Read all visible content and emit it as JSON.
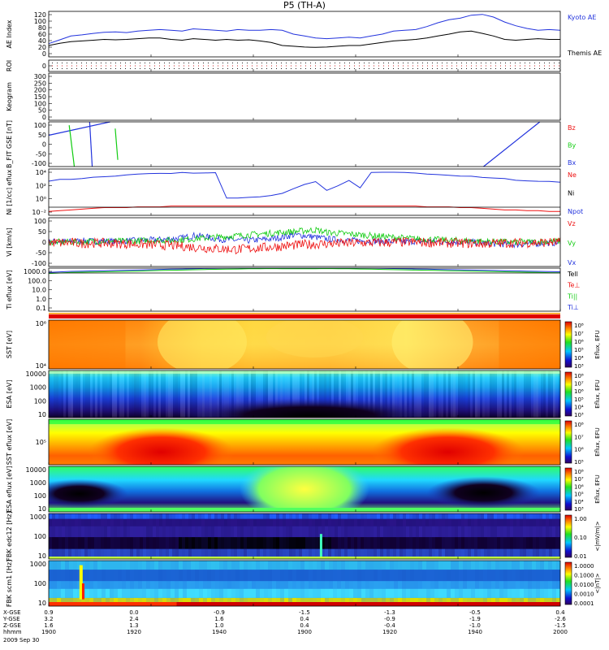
{
  "title": "P5 (TH-A)",
  "date": "2009 Sep 30",
  "colors": {
    "blue": "#2233dd",
    "red": "#ee1111",
    "green": "#11cc11",
    "black": "#000000"
  },
  "chart_data": [
    {
      "id": "ae",
      "type": "line",
      "ylabel": "AE Index",
      "ylim": [
        0,
        120
      ],
      "ticks": [
        "120",
        "100",
        "80",
        "60",
        "40",
        "20",
        "0"
      ],
      "legend": [
        {
          "text": "Kyoto AE",
          "color": "blue"
        },
        {
          "text": "Themis AE",
          "color": "black"
        }
      ],
      "series": [
        {
          "name": "Kyoto AE",
          "color": "blue",
          "values": [
            35,
            45,
            55,
            58,
            62,
            65,
            66,
            64,
            68,
            70,
            72,
            70,
            68,
            74,
            72,
            70,
            68,
            72,
            70,
            70,
            72,
            70,
            60,
            55,
            50,
            48,
            50,
            52,
            50,
            55,
            60,
            68,
            70,
            72,
            80,
            90,
            98,
            102,
            110,
            112,
            105,
            92,
            82,
            75,
            70,
            72,
            70
          ]
        },
        {
          "name": "Themis AE",
          "color": "black",
          "values": [
            30,
            36,
            40,
            42,
            44,
            46,
            45,
            46,
            48,
            50,
            50,
            46,
            44,
            48,
            46,
            44,
            46,
            44,
            45,
            42,
            38,
            30,
            28,
            26,
            25,
            26,
            28,
            30,
            30,
            34,
            38,
            42,
            44,
            46,
            50,
            55,
            60,
            66,
            68,
            62,
            55,
            46,
            44,
            46,
            48,
            46,
            46
          ]
        }
      ]
    },
    {
      "id": "roi",
      "type": "markers",
      "ylabel": "ROI",
      "ticks": [
        "0"
      ]
    },
    {
      "id": "keogram",
      "type": "blank",
      "ylabel": "Keogram",
      "ylim": [
        0,
        300
      ],
      "ticks": [
        "300",
        "250",
        "200",
        "150",
        "100",
        "50",
        "0"
      ]
    },
    {
      "id": "bfit",
      "type": "line",
      "ylabel": "B_FIT GSE [nT]",
      "ylim": [
        -100,
        100
      ],
      "ticks": [
        "100",
        "50",
        "0",
        "-50",
        "-100"
      ],
      "legend": [
        {
          "text": "Bz",
          "color": "red"
        },
        {
          "text": "By",
          "color": "green"
        },
        {
          "text": "Bx",
          "color": "blue"
        }
      ],
      "segments": [
        {
          "color": "blue",
          "x": [
            1900,
            1912
          ],
          "y": [
            40,
            100
          ]
        },
        {
          "color": "green",
          "x": [
            1904,
            1905
          ],
          "y": [
            85,
            -100
          ]
        },
        {
          "color": "blue",
          "x": [
            1908,
            1908.5
          ],
          "y": [
            100,
            -100
          ]
        },
        {
          "color": "green",
          "x": [
            1913,
            1913.5
          ],
          "y": [
            70,
            -70
          ]
        },
        {
          "color": "blue",
          "x": [
            1985,
            1996
          ],
          "y": [
            -100,
            100
          ]
        }
      ]
    },
    {
      "id": "ni",
      "type": "line",
      "ylabel": "Ni [1/cc] eflux",
      "ylim": [
        -1,
        5
      ],
      "ticks": [
        "10^4",
        "10^2",
        "10^0",
        "10^-2"
      ],
      "legend": [
        {
          "text": "Ne",
          "color": "red"
        },
        {
          "text": "Ni",
          "color": "black"
        },
        {
          "text": "Npot",
          "color": "blue"
        }
      ],
      "series": [
        {
          "name": "Ni",
          "color": "blue",
          "values": [
            3.5,
            3.6,
            3.7,
            3.8,
            3.9,
            4.0,
            4.1,
            4.2,
            4.3,
            4.4,
            4.4,
            4.4,
            4.5,
            4.5,
            4.5,
            4.5,
            1.2,
            1.3,
            1.3,
            1.4,
            1.5,
            1.8,
            2.5,
            3.0,
            3.3,
            2.2,
            2.8,
            3.5,
            2.5,
            4.5,
            4.6,
            4.6,
            4.5,
            4.5,
            4.4,
            4.3,
            4.2,
            4.1,
            4.0,
            3.9,
            3.8,
            3.7,
            3.6,
            3.5,
            3.4,
            3.4,
            3.3
          ]
        },
        {
          "name": "Ne",
          "color": "red",
          "values": [
            -0.5,
            -0.4,
            -0.3,
            -0.2,
            -0.1,
            0,
            0,
            0,
            0.1,
            0.1,
            0.1,
            0.2,
            0.2,
            0.2,
            0.2,
            0.2,
            0.2,
            0.2,
            0.2,
            0.2,
            0.2,
            0.2,
            0.2,
            0.2,
            0.2,
            0.2,
            0.2,
            0.2,
            0.2,
            0.2,
            0.2,
            0.2,
            0.2,
            0.2,
            0.1,
            0.1,
            0.1,
            0,
            0,
            -0.1,
            -0.2,
            -0.3,
            -0.3,
            -0.4,
            -0.4,
            -0.5,
            -0.5
          ]
        }
      ]
    },
    {
      "id": "vi",
      "type": "line",
      "ylabel": "Vi [km/s]",
      "ylim": [
        -150,
        150
      ],
      "ticks": [
        "100",
        "50",
        "0",
        "-50",
        "-100"
      ],
      "legend": [
        {
          "text": "Vz",
          "color": "red"
        },
        {
          "text": "Vy",
          "color": "green"
        },
        {
          "text": "Vx",
          "color": "blue"
        }
      ],
      "series": [
        {
          "name": "Vx",
          "color": "blue",
          "values": [
            0,
            5,
            3,
            8,
            5,
            6,
            4,
            8,
            10,
            12,
            15,
            20,
            25,
            40,
            35,
            20,
            15,
            12,
            10,
            15,
            20,
            30,
            45,
            40,
            30,
            20,
            15,
            10,
            8,
            6,
            5,
            4,
            3,
            5,
            4,
            3,
            2,
            1,
            0,
            -5,
            -10,
            -12,
            -15,
            -10,
            -8,
            -5,
            -3
          ]
        },
        {
          "name": "Vy",
          "color": "green",
          "values": [
            0,
            0,
            2,
            0,
            5,
            5,
            6,
            5,
            8,
            10,
            12,
            10,
            15,
            20,
            25,
            30,
            35,
            40,
            45,
            50,
            55,
            60,
            65,
            70,
            75,
            60,
            55,
            50,
            45,
            40,
            35,
            30,
            25,
            20,
            18,
            15,
            12,
            10,
            8,
            5,
            3,
            2,
            0,
            0,
            2,
            5,
            5
          ]
        },
        {
          "name": "Vz",
          "color": "red",
          "values": [
            0,
            -5,
            -3,
            -8,
            -5,
            -6,
            -8,
            -10,
            -12,
            -15,
            -18,
            -20,
            -25,
            -30,
            -35,
            -40,
            -42,
            -45,
            -40,
            -35,
            -30,
            -25,
            -20,
            -15,
            -12,
            -10,
            -8,
            -6,
            -5,
            -4,
            -3,
            -2,
            0,
            0,
            -2,
            -3,
            -5,
            -6,
            -8,
            -10,
            -8,
            -6,
            -5,
            -4,
            -3,
            -2,
            0
          ]
        }
      ]
    },
    {
      "id": "ti",
      "type": "line",
      "ylabel": "Ti eflux [eV]",
      "ylim": [
        -1,
        3
      ],
      "ticks": [
        "1000.0",
        "100.0",
        "10.0",
        "1.0",
        "0.1"
      ],
      "legend": [
        {
          "text": "Tell",
          "color": "black"
        },
        {
          "text": "Te⊥",
          "color": "red"
        },
        {
          "text": "Ti||",
          "color": "green"
        },
        {
          "text": "Ti⊥",
          "color": "blue"
        }
      ],
      "series": [
        {
          "name": "Ti",
          "color": "blue",
          "values": [
            2.6,
            2.65,
            2.7,
            2.72,
            2.74,
            2.75,
            2.78,
            2.8,
            2.82,
            2.85,
            2.88,
            2.9,
            2.92,
            2.95,
            2.97,
            2.98,
            3.0,
            3.02,
            3.04,
            3.05,
            3.06,
            3.05,
            3.04,
            3.04,
            3.05,
            3.06,
            3.05,
            3.04,
            3.02,
            3.0,
            2.98,
            2.96,
            2.94,
            2.92,
            2.9,
            2.88,
            2.86,
            2.84,
            2.82,
            2.8,
            2.78,
            2.76,
            2.74,
            2.72,
            2.7,
            2.68,
            2.66
          ]
        },
        {
          "name": "Ti||",
          "color": "green",
          "values": [
            2.5,
            2.55,
            2.6,
            2.62,
            2.64,
            2.66,
            2.68,
            2.7,
            2.72,
            2.75,
            2.78,
            2.8,
            2.82,
            2.85,
            2.87,
            2.89,
            2.9,
            2.92,
            2.94,
            2.95,
            2.96,
            2.95,
            2.94,
            2.94,
            2.95,
            2.96,
            2.95,
            2.94,
            2.92,
            2.9,
            2.88,
            2.86,
            2.84,
            2.82,
            2.8,
            2.78,
            2.76,
            2.74,
            2.72,
            2.7,
            2.68,
            2.66,
            2.64,
            2.62,
            2.6,
            2.58,
            2.56
          ]
        }
      ]
    },
    {
      "id": "sst1",
      "type": "heatmap",
      "ylabel": "SST [eV]",
      "ticks": [
        "10^6",
        "10^4"
      ],
      "colorbar": {
        "labels": [
          "10^8",
          "10^7",
          "10^6",
          "10^5",
          "10^4",
          "10^3"
        ],
        "title": "Eflux, EFU"
      }
    },
    {
      "id": "esa1",
      "type": "heatmap",
      "ylabel": "ESA [eV]",
      "ticks": [
        "10000",
        "1000",
        "100",
        "10"
      ],
      "colorbar": {
        "labels": [
          "10^8",
          "10^7",
          "10^6",
          "10^5",
          "10^4",
          "10^3"
        ],
        "title": "Eflux, EFU"
      }
    },
    {
      "id": "sst2",
      "type": "heatmap",
      "ylabel": "SST eflux [eV]",
      "ticks": [
        "10^5"
      ],
      "colorbar": {
        "labels": [
          "10^8",
          "10^7",
          "10^6",
          "10^5"
        ],
        "title": "Eflux, EFU"
      }
    },
    {
      "id": "esa2",
      "type": "heatmap",
      "ylabel": "ESA eflux [eV]",
      "ticks": [
        "10000",
        "1000",
        "100",
        "10"
      ],
      "colorbar": {
        "labels": [
          "10^8",
          "10^7",
          "10^6",
          "10^5",
          "10^4",
          "10^3"
        ],
        "title": "Eflux, EFU"
      }
    },
    {
      "id": "fbk1",
      "type": "heatmap",
      "ylabel": "FBK edc12 [Hz]",
      "ticks": [
        "1000",
        "100",
        "10"
      ],
      "colorbar": {
        "labels": [
          "1.00",
          "0.10",
          "0.01"
        ],
        "title": "<|mV/m|>"
      }
    },
    {
      "id": "fbk2",
      "type": "heatmap",
      "ylabel": "FBK scm1 [Hz]",
      "ticks": [
        "1000",
        "100",
        "10"
      ],
      "colorbar": {
        "labels": [
          "1.0000",
          "0.1000",
          "0.0100",
          "0.0010",
          "0.0001"
        ],
        "title": "<|nT|>"
      }
    }
  ],
  "xaxis": {
    "rows": [
      {
        "label": "X-GSE",
        "values": [
          "0.9",
          "0.0",
          "-0.9",
          "-1.5",
          "-1.3",
          "-0.5",
          "0.4"
        ]
      },
      {
        "label": "Y-GSE",
        "values": [
          "3.2",
          "2.4",
          "1.6",
          "0.4",
          "-0.9",
          "-1.9",
          "-2.6"
        ]
      },
      {
        "label": "Z-GSE",
        "values": [
          "1.6",
          "1.3",
          "1.0",
          "0.4",
          "-0.4",
          "-1.0",
          "-1.5"
        ]
      },
      {
        "label": "hhmm",
        "values": [
          "1900",
          "1920",
          "1940",
          "1900",
          "1920",
          "1940",
          "2000"
        ]
      }
    ]
  }
}
